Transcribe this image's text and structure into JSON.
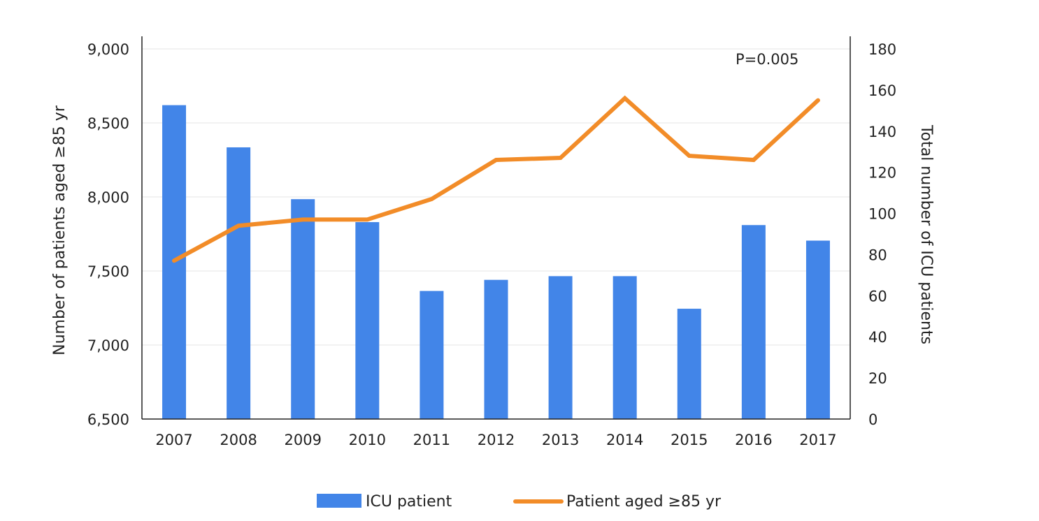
{
  "chart_data": {
    "type": "bar",
    "categories": [
      "2007",
      "2008",
      "2009",
      "2010",
      "2011",
      "2012",
      "2013",
      "2014",
      "2015",
      "2016",
      "2017"
    ],
    "series": [
      {
        "name": "ICU patient",
        "type": "bar",
        "axis": "left",
        "color": "#4285e8",
        "values": [
          8620,
          8335,
          7985,
          7830,
          7365,
          7440,
          7465,
          7465,
          7245,
          7810,
          7705
        ]
      },
      {
        "name": "Patient aged ≥85 yr",
        "type": "line",
        "axis": "right",
        "color": "#f28c28",
        "values": [
          77,
          94,
          97,
          97,
          107,
          126,
          127,
          156,
          128,
          126,
          155
        ]
      }
    ],
    "ylabel": "Number of patients aged ≥85 yr",
    "y2label": "Total number of ICU patients",
    "ylim": [
      6500,
      9000
    ],
    "y2lim": [
      0,
      180
    ],
    "yticks": [
      "6,500",
      "7,000",
      "7,500",
      "8,000",
      "8,500",
      "9,000"
    ],
    "y2ticks": [
      "0",
      "20",
      "40",
      "60",
      "80",
      "100",
      "120",
      "140",
      "160",
      "180"
    ],
    "annotation": "P=0.005",
    "grid": true,
    "legend_position": "bottom"
  }
}
